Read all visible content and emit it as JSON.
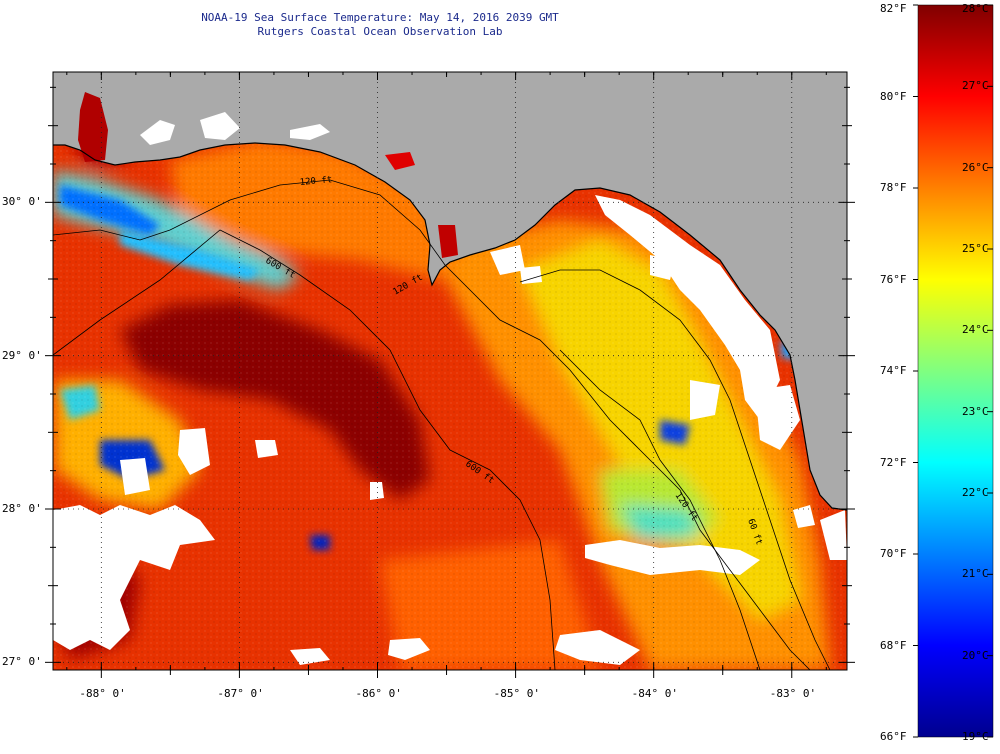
{
  "title": {
    "line1": "NOAA-19 Sea Surface Temperature:  May 14, 2016 2039 GMT",
    "line2": "Rutgers Coastal Ocean Observation Lab"
  },
  "map": {
    "lon_ticks": [
      "-88° 0'",
      "-87° 0'",
      "-86° 0'",
      "-85° 0'",
      "-84° 0'",
      "-83° 0'"
    ],
    "lat_ticks": [
      "30° 0'",
      "29° 0'",
      "28° 0'",
      "27° 0'"
    ],
    "lon_values": [
      -88,
      -87,
      -86,
      -85,
      -84,
      -83
    ],
    "lat_values": [
      30,
      29,
      28,
      27
    ],
    "lon_range": [
      -88.35,
      -82.6
    ],
    "lat_range": [
      26.95,
      30.85
    ],
    "contour_labels": [
      "120 ft",
      "600 ft",
      "600 ft",
      "120 ft",
      "60 ft",
      "120 ft"
    ],
    "colors": {
      "land": "#aaaaaa",
      "cloud": "#ffffff",
      "coast": "#000000",
      "warm_core": "#8b0000",
      "warm": "#e82a00",
      "mid": "#ffbe00",
      "cool": "#00b8e8"
    }
  },
  "colorbar": {
    "f_labels": [
      "82°F",
      "80°F",
      "78°F",
      "76°F",
      "74°F",
      "72°F",
      "70°F",
      "68°F",
      "66°F"
    ],
    "c_labels": [
      "28°C",
      "27°C",
      "26°C",
      "25°C",
      "24°C",
      "23°C",
      "22°C",
      "21°C",
      "20°C",
      "19°C"
    ],
    "c_range": [
      19,
      28
    ],
    "f_range": [
      66,
      82
    ],
    "stops": [
      "#00008f",
      "#0000ff",
      "#0080ff",
      "#00ffff",
      "#80ff80",
      "#ffff00",
      "#ff8000",
      "#ff0000",
      "#800000"
    ]
  }
}
